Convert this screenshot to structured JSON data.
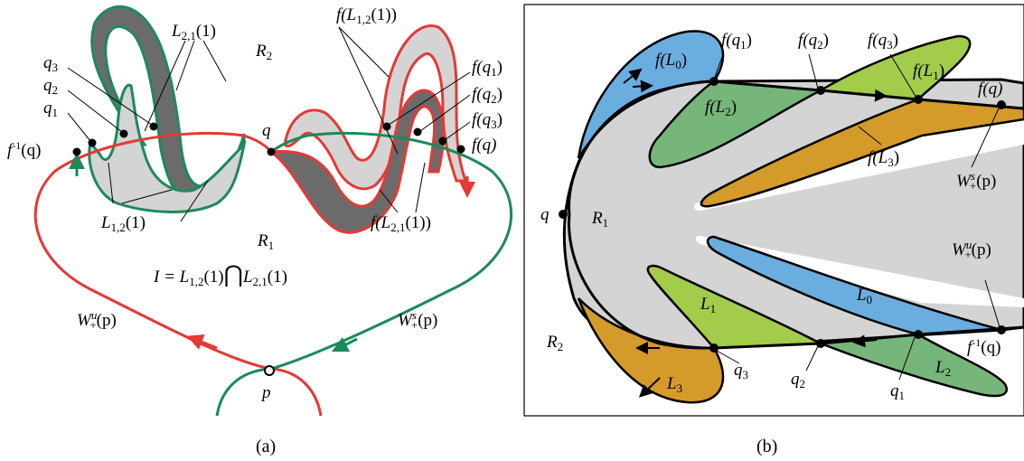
{
  "panel_a": {
    "caption": "(a)",
    "labels": {
      "L21": "L",
      "L21_sub": "2,1",
      "L21_arg": "(1)",
      "R2": "R",
      "R2_sub": "2",
      "fL12": "f(L",
      "fL12_sub": "1,2",
      "fL12_arg": "(1))",
      "q3": "q",
      "q3_sub": "3",
      "q2": "q",
      "q2_sub": "2",
      "q1": "q",
      "q1_sub": "1",
      "finv_q": "f",
      "finv_sup": "-1",
      "finv_arg": "(q)",
      "q": "q",
      "fq1": "f(q",
      "fq1_sub": "1",
      "fq1_end": ")",
      "fq2": "f(q",
      "fq2_sub": "2",
      "fq2_end": ")",
      "fq3": "f(q",
      "fq3_sub": "3",
      "fq3_end": ")",
      "fq": "f(q)",
      "L12": "L",
      "L12_sub": "1,2",
      "L12_arg": "(1)",
      "R1": "R",
      "R1_sub": "1",
      "fL21": "f(L",
      "fL21_sub": "2,1",
      "fL21_arg": "(1))",
      "I_eq": "I = L",
      "I_sub1": "1,2",
      "I_mid": "(1)",
      "I_cap": "⋂",
      "I_L": "L",
      "I_sub2": "2,1",
      "I_end": "(1)",
      "Wu": "W",
      "Wu_sup": "u",
      "Wu_sub": "+",
      "Wu_arg": "(p)",
      "Ws": "W",
      "Ws_sup": "s",
      "Ws_sub": "+",
      "Ws_arg": "(p)",
      "p": "p"
    }
  },
  "panel_b": {
    "caption": "(b)",
    "labels": {
      "fL0": "f(L",
      "fL0_sub": "0",
      "fL0_end": ")",
      "fq1": "f(q",
      "fq1_sub": "1",
      "fq1_end": ")",
      "fq2": "f(q",
      "fq2_sub": "2",
      "fq2_end": ")",
      "fq3": "f(q",
      "fq3_sub": "3",
      "fq3_end": ")",
      "fq": "f(q)",
      "fL1": "f(L",
      "fL1_sub": "1",
      "fL1_end": ")",
      "fL2": "f(L",
      "fL2_sub": "2",
      "fL2_end": ")",
      "fL3": "f(L",
      "fL3_sub": "3",
      "fL3_end": ")",
      "Ws": "W",
      "Ws_sup": "s",
      "Ws_sub": "+",
      "Ws_arg": "(p)",
      "Wu": "W",
      "Wu_sup": "u",
      "Wu_sub": "+",
      "Wu_arg": "(p)",
      "q": "q",
      "R1": "R",
      "R1_sub": "1",
      "R2": "R",
      "R2_sub": "2",
      "L0": "L",
      "L0_sub": "0",
      "L1": "L",
      "L1_sub": "1",
      "L2": "L",
      "L2_sub": "2",
      "L3": "L",
      "L3_sub": "3",
      "q1": "q",
      "q1_sub": "1",
      "q2": "q",
      "q2_sub": "2",
      "q3": "q",
      "q3_sub": "3",
      "finv_q": "f",
      "finv_sup": "-1",
      "finv_arg": "(q)"
    }
  },
  "colors": {
    "unstable_red": "#e53935",
    "stable_green": "#1b8a5a",
    "dark_gray": "#6b6b6b",
    "light_gray": "#d4d4d4",
    "blue": "#6aaee0",
    "lime": "#a2cc4a",
    "green": "#77b67a",
    "orange": "#d49a2a"
  }
}
